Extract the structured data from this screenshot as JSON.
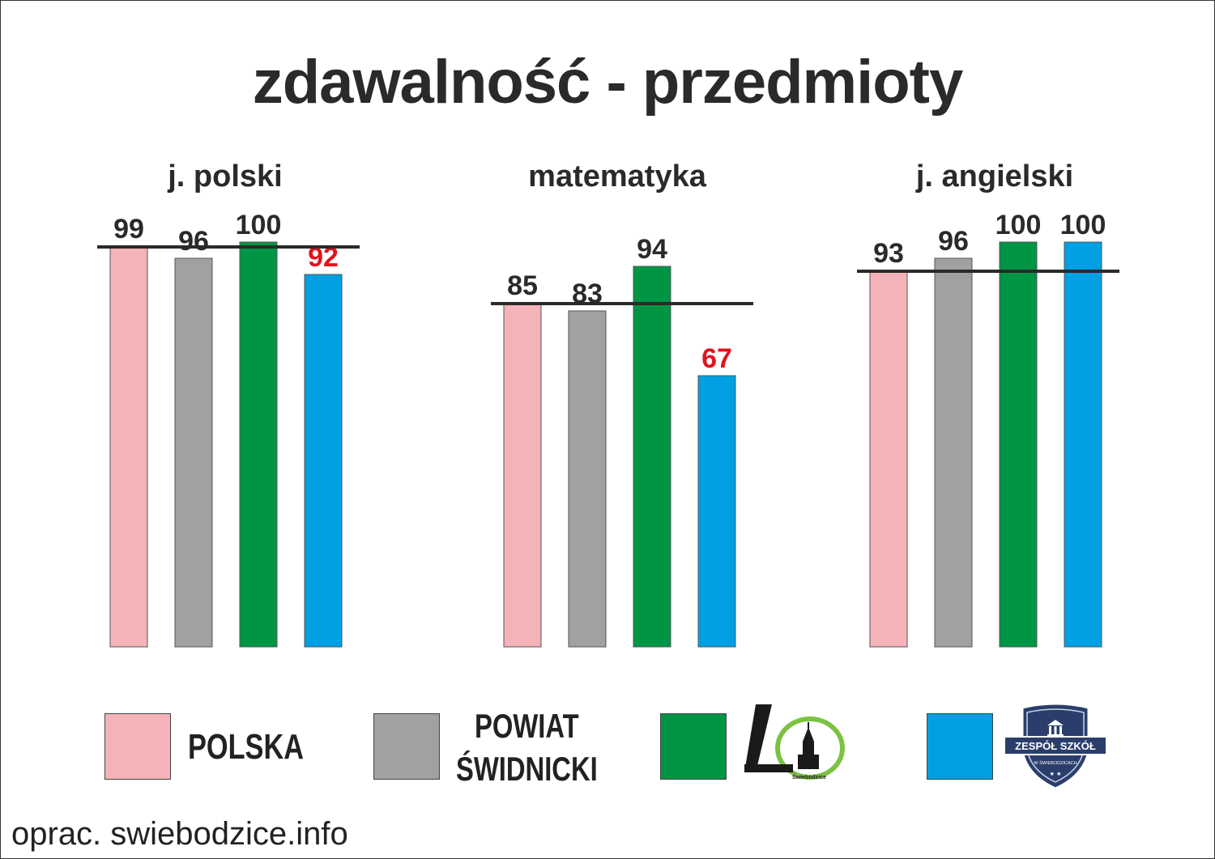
{
  "title": "zdawalność - przedmioty",
  "credit": "oprac. swiebodzice.info",
  "colors": {
    "polska": "#f4b3b8",
    "powiat": "#a0a1a0",
    "school_l": "#009544",
    "school_zs": "#00a0e3",
    "reference_line": "#2a2a2a",
    "highlight_value": "#e0141e",
    "value_text": "#2a2a2a"
  },
  "legend": [
    {
      "label": "POLSKA",
      "color": "#f4b3b8"
    },
    {
      "label_line1": "POWIAT",
      "label_line2": "ŚWIDNICKI",
      "color": "#a0a1a0"
    },
    {
      "logo": "school-l-logo",
      "logo_caption": "Świebodzice",
      "color": "#009544"
    },
    {
      "logo": "zespol-szkol-shield-logo",
      "logo_text_main": "ZESPÓŁ SZKÓŁ",
      "logo_text_sub": "W ŚWIEBODZICACH",
      "color": "#00a0e3"
    }
  ],
  "chart_data": {
    "type": "bar",
    "title": "zdawalność - przedmioty",
    "ylim": [
      0,
      100
    ],
    "ylabel": "",
    "groups": [
      {
        "name": "j. polski",
        "values": [
          99,
          96,
          100,
          92
        ],
        "reference": 99,
        "highlight_index": 3
      },
      {
        "name": "matematyka",
        "values": [
          85,
          83,
          94,
          67
        ],
        "reference": 85,
        "highlight_index": 3
      },
      {
        "name": "j. angielski",
        "values": [
          93,
          96,
          100,
          100
        ],
        "reference": 93,
        "highlight_index": -1
      }
    ],
    "series_colors": [
      "#f4b3b8",
      "#a0a1a0",
      "#009544",
      "#00a0e3"
    ],
    "grid": false,
    "legend_position": "bottom"
  }
}
